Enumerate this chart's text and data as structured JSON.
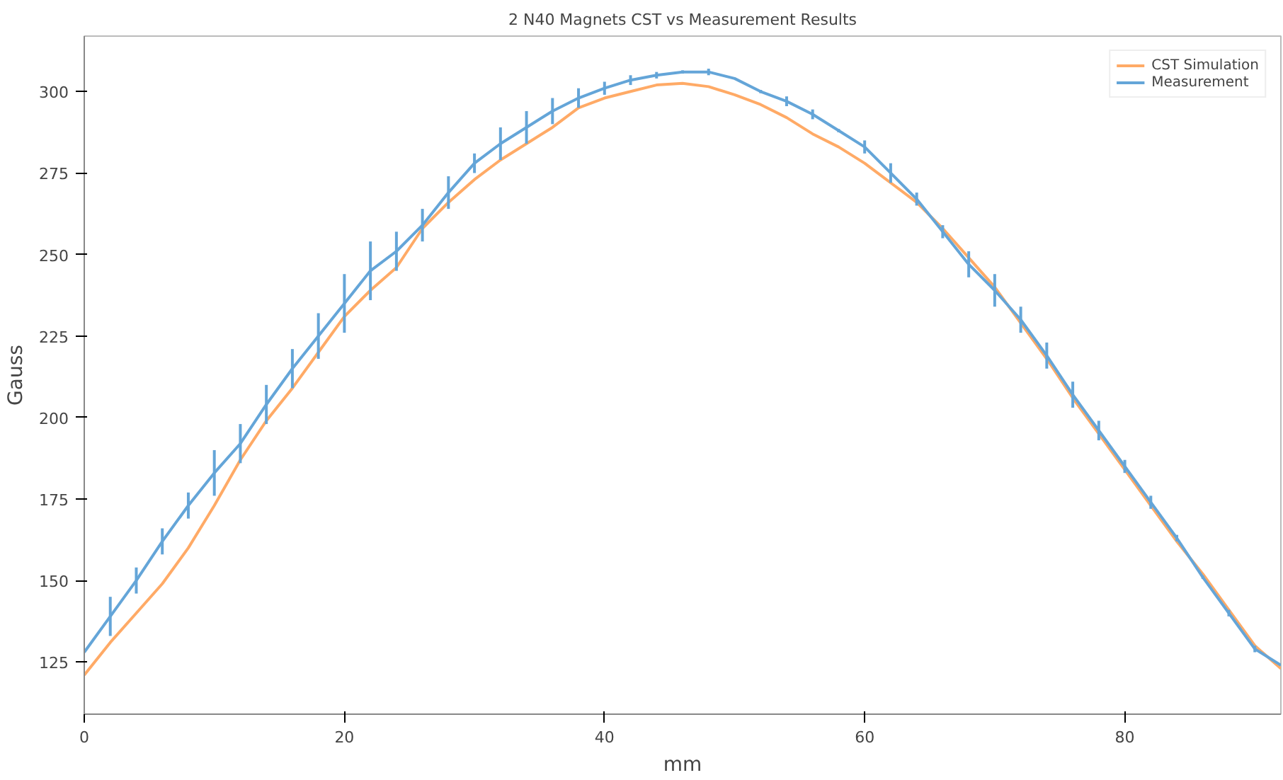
{
  "chart_data": {
    "type": "line",
    "title": "2 N40 Magnets CST vs Measurement Results",
    "xlabel": "mm",
    "ylabel": "Gauss",
    "xlim": [
      0,
      92
    ],
    "ylim": [
      109,
      317
    ],
    "xticks": [
      0,
      20,
      40,
      60,
      80
    ],
    "yticks": [
      125,
      150,
      175,
      200,
      225,
      250,
      275,
      300
    ],
    "grid": false,
    "legend": "top right",
    "marker": "none",
    "line_style": "solid",
    "series": [
      {
        "name": "CST Simulation",
        "color": "#ffaa66",
        "x": [
          0,
          2,
          4,
          6,
          8,
          10,
          12,
          14,
          16,
          18,
          20,
          22,
          24,
          26,
          28,
          30,
          32,
          34,
          36,
          38,
          40,
          42,
          44,
          46,
          48,
          50,
          52,
          54,
          56,
          58,
          60,
          62,
          64,
          66,
          68,
          70,
          72,
          74,
          76,
          78,
          80,
          82,
          84,
          86,
          88,
          90,
          92
        ],
        "values": [
          121,
          131,
          140,
          149,
          160,
          173,
          187,
          199,
          209,
          220,
          231,
          239,
          246,
          258,
          266,
          273,
          279,
          284,
          289,
          295,
          298,
          300,
          302,
          302.5,
          301.5,
          299,
          296,
          292,
          287,
          283,
          278,
          272,
          266,
          258,
          249,
          240,
          229,
          218,
          206,
          195,
          184,
          173,
          162,
          152,
          141,
          130,
          123
        ]
      },
      {
        "name": "Measurement",
        "color": "#64a5d8",
        "x": [
          0,
          2,
          4,
          6,
          8,
          10,
          12,
          14,
          16,
          18,
          20,
          22,
          24,
          26,
          28,
          30,
          32,
          34,
          36,
          38,
          40,
          42,
          44,
          46,
          48,
          50,
          52,
          54,
          56,
          58,
          60,
          62,
          64,
          66,
          68,
          70,
          72,
          74,
          76,
          78,
          80,
          82,
          84,
          86,
          88,
          90,
          92
        ],
        "values": [
          128,
          139,
          150,
          162,
          173,
          183,
          192,
          204,
          215,
          225,
          235,
          245,
          251,
          259,
          269,
          278,
          284,
          289,
          294,
          298,
          301,
          303.5,
          305,
          306,
          306,
          304,
          300,
          297,
          293,
          288,
          283,
          275,
          267,
          257,
          247,
          239,
          230,
          219,
          207,
          196,
          185,
          174,
          163,
          151,
          140,
          129,
          124
        ],
        "errors": [
          null,
          6,
          4,
          4,
          4,
          7,
          6,
          6,
          6,
          7,
          9,
          9,
          6,
          5,
          5,
          3,
          5,
          5,
          4,
          3,
          2,
          1.5,
          1,
          0.5,
          1,
          null,
          0.5,
          1.5,
          1.5,
          0.5,
          2,
          3,
          2,
          2,
          4,
          5,
          4,
          4,
          4,
          3,
          2,
          2,
          1,
          0.5,
          1,
          1,
          null
        ]
      }
    ]
  }
}
